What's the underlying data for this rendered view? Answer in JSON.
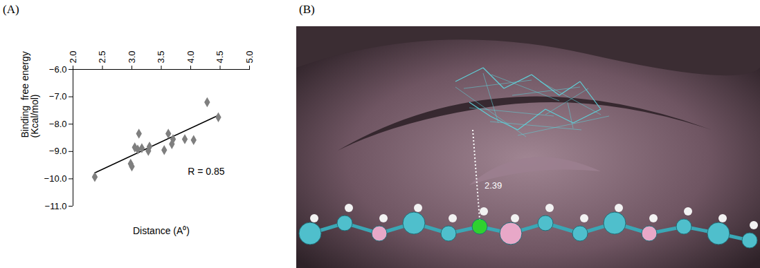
{
  "chart_data": {
    "type": "scatter",
    "panel_label": "(A)",
    "x_label": "Distance (A⁰)",
    "y_label": "Binding  free energy (Kcal/mol)",
    "annotation": "R = 0.85",
    "x": [
      2.37,
      2.98,
      3.0,
      3.05,
      3.1,
      3.12,
      3.17,
      3.28,
      3.3,
      3.55,
      3.62,
      3.68,
      3.7,
      3.9,
      4.05,
      4.28,
      4.47
    ],
    "values": [
      -9.93,
      -9.45,
      -9.55,
      -8.85,
      -8.93,
      -8.35,
      -8.88,
      -8.98,
      -8.82,
      -8.95,
      -8.35,
      -8.73,
      -8.55,
      -8.55,
      -8.58,
      -7.2,
      -7.75
    ],
    "color": "#7f7f7f",
    "marker": "diamond",
    "fit": {
      "type": "line",
      "x": [
        2.37,
        4.47
      ],
      "values": [
        -9.78,
        -7.68
      ],
      "color": "#000000"
    },
    "xlim": [
      2,
      5
    ],
    "xticks": [
      2,
      2.5,
      3,
      3.5,
      4,
      4.5,
      5
    ],
    "ylim": [
      -11,
      -6
    ],
    "yticks": [
      -6,
      -7,
      -8,
      -9,
      -10,
      -11
    ],
    "grid": false
  },
  "panel_b": {
    "panel_label": "(B)",
    "annotation": "2.39"
  }
}
